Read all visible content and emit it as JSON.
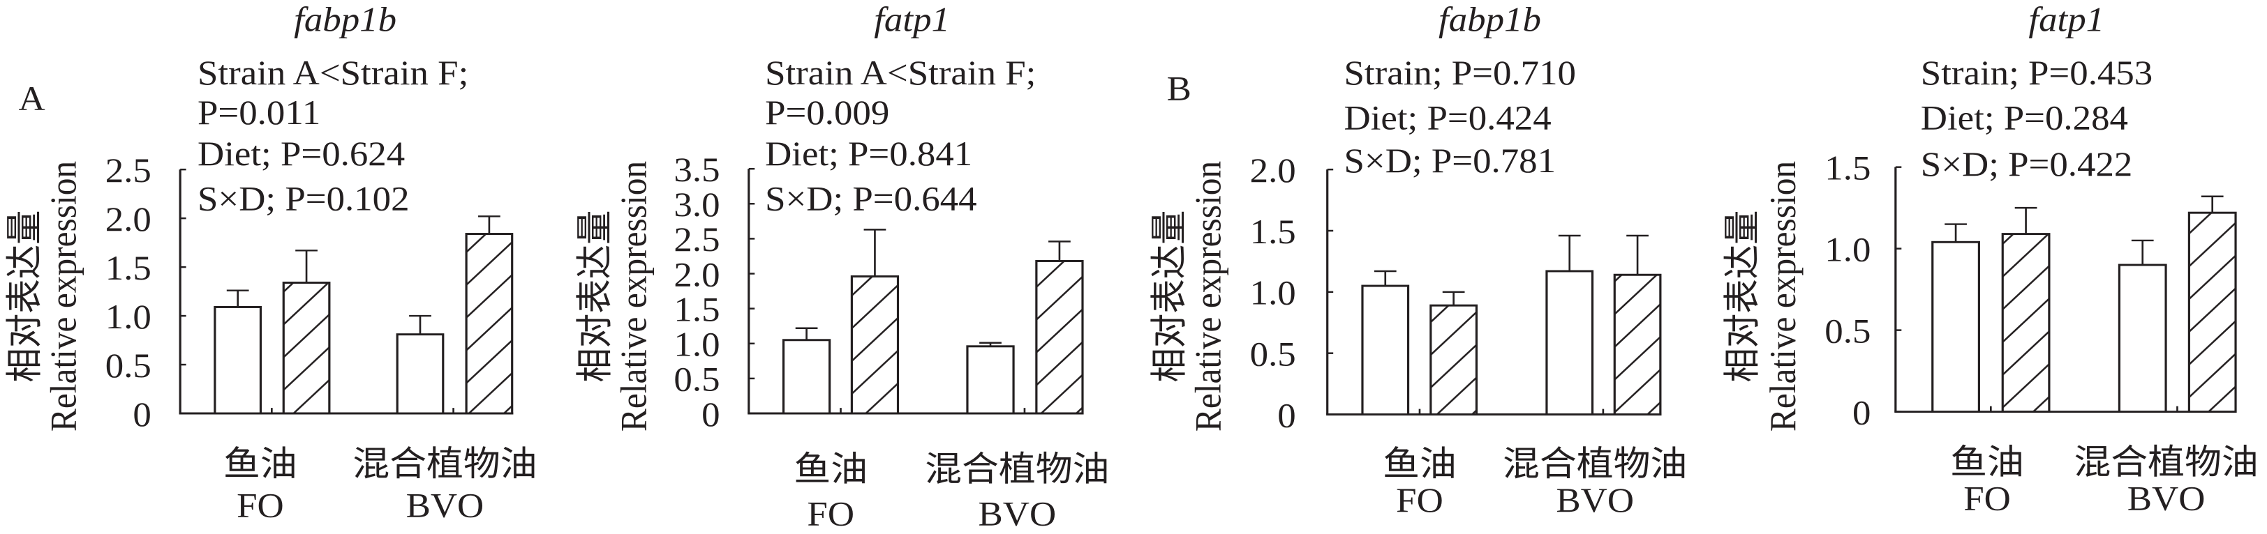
{
  "chart_data": [
    {
      "type": "bar",
      "panel_label": "A",
      "title": "fabp1b",
      "annotations": [
        "Strain A<Strain F;",
        "P=0.011",
        "Diet; P=0.624",
        "S×D; P=0.102"
      ],
      "ylabel": [
        "相对表达量",
        "Relative expression"
      ],
      "categories": [
        [
          "鱼油",
          "FO"
        ],
        [
          "混合植物油",
          "BVO"
        ]
      ],
      "yticks": [
        "0",
        "0.5",
        "1.0",
        "1.5",
        "2.0",
        "2.5"
      ],
      "ylim": [
        0,
        2.5
      ],
      "series": [
        {
          "name": "Strain A",
          "pattern": "open",
          "values": [
            1.09,
            0.81
          ],
          "errors": [
            0.17,
            0.19
          ]
        },
        {
          "name": "Strain F",
          "pattern": "hatched",
          "values": [
            1.34,
            1.84
          ],
          "errors": [
            0.33,
            0.18
          ]
        }
      ]
    },
    {
      "type": "bar",
      "panel_label": "",
      "title": "fatp1",
      "annotations": [
        "Strain A<Strain F;",
        "P=0.009",
        "Diet; P=0.841",
        "S×D; P=0.644"
      ],
      "ylabel": [
        "相对表达量",
        "Relative expression"
      ],
      "categories": [
        [
          "鱼油",
          "FO"
        ],
        [
          "混合植物油",
          "BVO"
        ]
      ],
      "yticks": [
        "0",
        "0.5",
        "1.0",
        "1.5",
        "2.0",
        "2.5",
        "3.0",
        "3.5"
      ],
      "ylim": [
        0,
        3.5
      ],
      "series": [
        {
          "name": "Strain A",
          "pattern": "open",
          "values": [
            1.05,
            0.96
          ],
          "errors": [
            0.17,
            0.05
          ]
        },
        {
          "name": "Strain F",
          "pattern": "hatched",
          "values": [
            1.96,
            2.18
          ],
          "errors": [
            0.67,
            0.28
          ]
        }
      ]
    },
    {
      "type": "bar",
      "panel_label": "B",
      "title": "fabp1b",
      "annotations": [
        "Strain; P=0.710",
        "Diet; P=0.424",
        "S×D; P=0.781"
      ],
      "ylabel": [
        "相对表达量",
        "Relative expression"
      ],
      "categories": [
        [
          "鱼油",
          "FO"
        ],
        [
          "混合植物油",
          "BVO"
        ]
      ],
      "yticks": [
        "0",
        "0.5",
        "1.0",
        "1.5",
        "2.0"
      ],
      "ylim": [
        0,
        2.0
      ],
      "series": [
        {
          "name": "Strain A",
          "pattern": "open",
          "values": [
            1.05,
            1.17
          ],
          "errors": [
            0.12,
            0.29
          ]
        },
        {
          "name": "Strain F",
          "pattern": "hatched",
          "values": [
            0.89,
            1.14
          ],
          "errors": [
            0.11,
            0.32
          ]
        }
      ]
    },
    {
      "type": "bar",
      "panel_label": "",
      "title": "fatp1",
      "annotations": [
        "Strain; P=0.453",
        "Diet; P=0.284",
        "S×D; P=0.422"
      ],
      "ylabel": [
        "相对表达量",
        "Relative expression"
      ],
      "categories": [
        [
          "鱼油",
          "FO"
        ],
        [
          "混合植物油",
          "BVO"
        ]
      ],
      "yticks": [
        "0",
        "0.5",
        "1.0",
        "1.5"
      ],
      "ylim": [
        0,
        1.5
      ],
      "series": [
        {
          "name": "Strain A",
          "pattern": "open",
          "values": [
            1.04,
            0.9
          ],
          "errors": [
            0.11,
            0.15
          ]
        },
        {
          "name": "Strain F",
          "pattern": "hatched",
          "values": [
            1.09,
            1.22
          ],
          "errors": [
            0.16,
            0.1
          ]
        }
      ]
    }
  ]
}
